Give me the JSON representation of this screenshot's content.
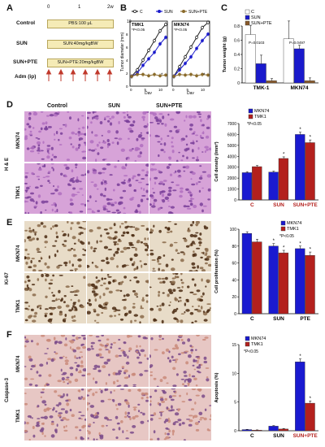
{
  "panels": {
    "A": "A",
    "B": "B",
    "C": "C",
    "D": "D",
    "E": "E",
    "F": "F"
  },
  "panelA": {
    "axis_start": "0",
    "axis_mid": "1",
    "axis_end": "2w",
    "rows": [
      {
        "label": "Control",
        "box": "PBS:100 μL"
      },
      {
        "label": "SUN",
        "box": "SUN:40mg/kgBW"
      },
      {
        "label": "SUN+PTE",
        "box": "SUN+PTE:20mg/kgBW"
      }
    ],
    "adm_label": "Adm (ip)"
  },
  "panelB": {
    "ylabel": "Tumor diameter (mm)",
    "xlabel": "Day",
    "legend": [
      "C",
      "SUN",
      "SUN+PTE"
    ],
    "sig": "*P<0.05",
    "star": "*",
    "ytick_top": "10",
    "charts": [
      {
        "title": "TMK1",
        "xticks": [
          "0",
          "5",
          "10"
        ],
        "yticks": [
          "0",
          "2",
          "4",
          "6",
          "8"
        ]
      },
      {
        "title": "MKN74",
        "xticks": [
          "0",
          "5",
          "10"
        ],
        "yticks": []
      }
    ]
  },
  "panelC": {
    "ylabel": "Tumor weight (g)",
    "legend": [
      "C",
      "SUN",
      "SUN+PTE"
    ],
    "pvals": [
      "P=0.0103",
      "P=0.0497"
    ],
    "yticks": [
      "0",
      "0.2",
      "0.4",
      "0.6",
      "0.8"
    ]
  },
  "panelD": {
    "cols": [
      "Control",
      "SUN",
      "SUN+PTE"
    ],
    "rows": [
      "MKN74",
      "TMK1"
    ],
    "stain": "H & E",
    "ylabel": "Cell density (/mm²)",
    "legend": [
      "MKN74",
      "TMK1"
    ],
    "sig": "*P<0.05",
    "yticks": [
      "0",
      "1000",
      "2000",
      "3000",
      "4000",
      "5000",
      "6000",
      "7000"
    ]
  },
  "panelE": {
    "rows": [
      "MKN74",
      "TMK1"
    ],
    "stain": "Ki-67",
    "ylabel": "Cell proliferation (%)",
    "legend": [
      "MKN74",
      "TMK1"
    ],
    "sig": "*P<0.05",
    "yticks": [
      "0",
      "20",
      "40",
      "60",
      "80",
      "100"
    ]
  },
  "panelF": {
    "rows": [
      "MKN74",
      "TMK1"
    ],
    "stain": "Caspase-3",
    "ylabel": "Apoptosis (%)",
    "legend": [
      "MKN74",
      "TMK1"
    ],
    "sig": "*P<0.05",
    "yticks": [
      "0",
      "5",
      "10",
      "15"
    ]
  },
  "colors": {
    "C": "#ffffff",
    "SUN": "#1a1acc",
    "PTE": "#8a5a2b",
    "MKN74": "#1a1ad0",
    "TMK1": "#b3201d",
    "line_C": "#222222",
    "line_SUN": "#1a1acc",
    "line_PTE": "#8a6a2b",
    "HE_bg": "#d7a3d8",
    "Ki67_bg": "#e8dcc8",
    "Casp_bg": "#e7c7c4"
  },
  "chart_data": [
    {
      "type": "line",
      "panel": "B",
      "title": "TMK1",
      "xlabel": "Day",
      "ylabel": "Tumor diameter (mm)",
      "ylim": [
        0,
        10
      ],
      "x": [
        0,
        2,
        4,
        6,
        8,
        10,
        12
      ],
      "series": [
        {
          "name": "C",
          "values": [
            1.5,
            2.5,
            4,
            5.5,
            7,
            8.5,
            9.5
          ]
        },
        {
          "name": "SUN",
          "values": [
            1.5,
            2,
            3.2,
            4.2,
            5.2,
            6.5,
            7.5
          ]
        },
        {
          "name": "SUN+PTE",
          "values": [
            1.5,
            1.8,
            1.8,
            1.6,
            1.8,
            1.6,
            1.7
          ]
        }
      ]
    },
    {
      "type": "line",
      "panel": "B",
      "title": "MKN74",
      "xlabel": "Day",
      "ylabel": "",
      "ylim": [
        0,
        10
      ],
      "x": [
        0,
        2,
        4,
        6,
        8,
        10,
        12
      ],
      "series": [
        {
          "name": "C",
          "values": [
            1.5,
            3,
            4.5,
            6,
            7.5,
            9,
            9.8
          ]
        },
        {
          "name": "SUN",
          "values": [
            1.5,
            2.5,
            3.5,
            4.5,
            5.8,
            7,
            8
          ]
        },
        {
          "name": "SUN+PTE",
          "values": [
            1.5,
            1.8,
            1.7,
            1.8,
            1.6,
            1.8,
            1.7
          ]
        }
      ]
    },
    {
      "type": "bar",
      "panel": "C",
      "ylabel": "Tumor weight (g)",
      "ylim": [
        0,
        0.8
      ],
      "categories": [
        "TMK-1",
        "MKN74"
      ],
      "series": [
        {
          "name": "C",
          "values": [
            0.68,
            0.62
          ]
        },
        {
          "name": "SUN",
          "values": [
            0.27,
            0.48
          ]
        },
        {
          "name": "SUN+PTE",
          "values": [
            0.03,
            0.03
          ]
        }
      ],
      "errors": [
        [
          0.13,
          0.25
        ],
        [
          0.12,
          0.05
        ],
        [
          0.03,
          0.04
        ]
      ]
    },
    {
      "type": "bar",
      "panel": "D",
      "ylabel": "Cell density (/mm²)",
      "ylim": [
        0,
        7000
      ],
      "categories": [
        "C",
        "SUN",
        "SUN+PTE"
      ],
      "series": [
        {
          "name": "MKN74",
          "values": [
            2500,
            2550,
            6000
          ]
        },
        {
          "name": "TMK1",
          "values": [
            3050,
            3800,
            5250
          ]
        }
      ],
      "errors": [
        [
          80,
          90,
          200
        ],
        [
          100,
          150,
          250
        ]
      ]
    },
    {
      "type": "bar",
      "panel": "E",
      "ylabel": "Cell proliferation (%)",
      "ylim": [
        0,
        100
      ],
      "categories": [
        "C",
        "SUN",
        "PTE"
      ],
      "series": [
        {
          "name": "MKN74",
          "values": [
            95,
            80,
            77
          ]
        },
        {
          "name": "TMK1",
          "values": [
            85,
            72,
            69
          ]
        }
      ],
      "errors": [
        [
          2,
          3,
          3
        ],
        [
          3,
          3,
          4
        ]
      ]
    },
    {
      "type": "bar",
      "panel": "F",
      "ylabel": "Apoptosis (%)",
      "ylim": [
        0,
        15
      ],
      "categories": [
        "C",
        "SUN",
        "SUN+PTE"
      ],
      "series": [
        {
          "name": "MKN74",
          "values": [
            0.2,
            0.8,
            12
          ]
        },
        {
          "name": "TMK1",
          "values": [
            0.1,
            0.3,
            4.8
          ]
        }
      ],
      "errors": [
        [
          0.05,
          0.1,
          0.5
        ],
        [
          0.05,
          0.1,
          0.4
        ]
      ]
    }
  ]
}
